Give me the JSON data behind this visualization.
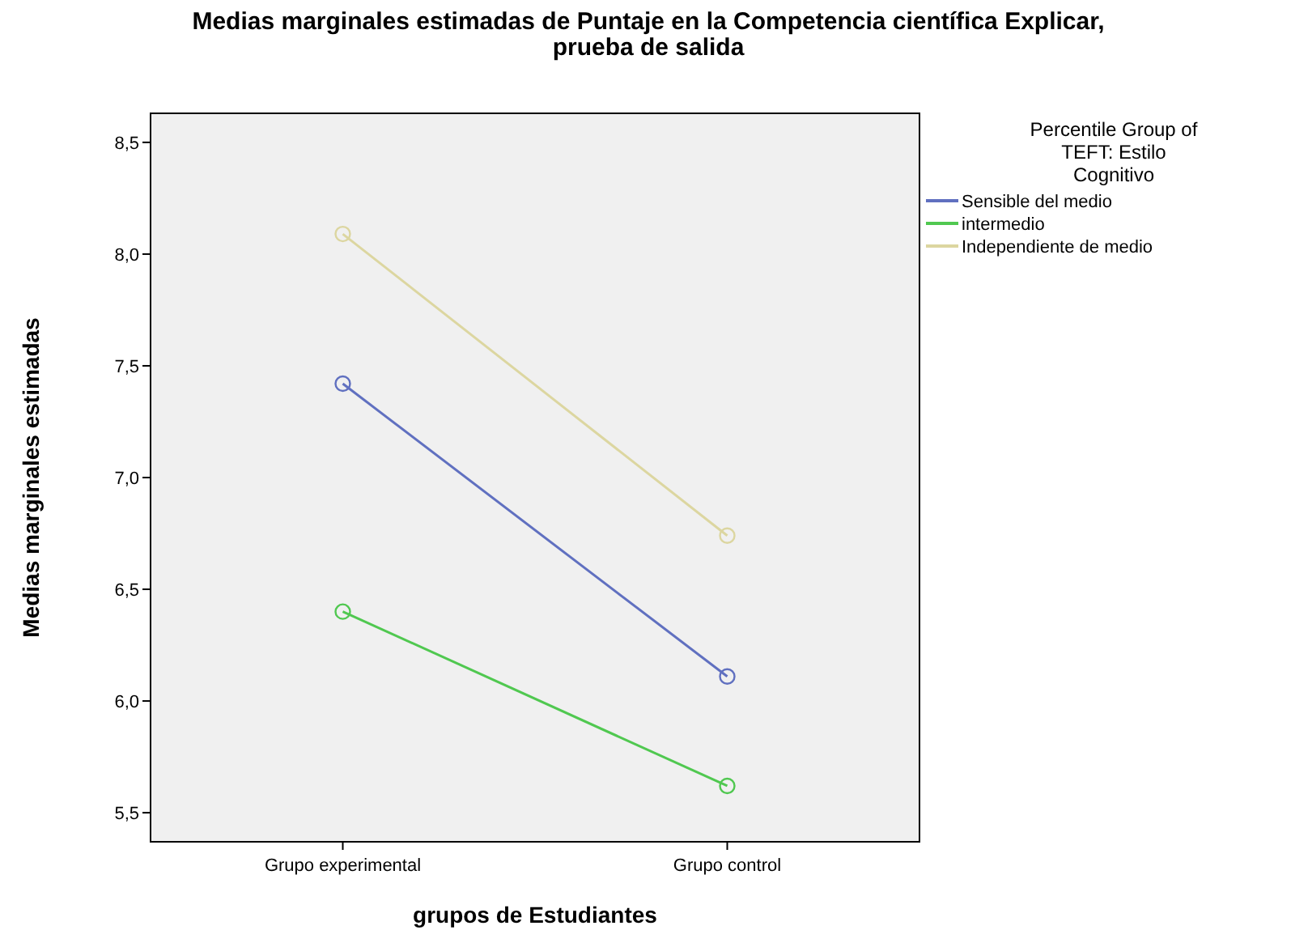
{
  "chart_data": {
    "type": "line",
    "title": "Medias marginales estimadas de Puntaje en la Competencia científica Explicar, prueba de salida",
    "xlabel": "grupos de Estudiantes",
    "ylabel": "Medias marginales estimadas",
    "legend_title": "Percentile Group of TEFT: Estilo Cognitivo",
    "categories": [
      "Grupo experimental",
      "Grupo control"
    ],
    "series": [
      {
        "name": "Sensible del medio",
        "color": "#6070c0",
        "values": [
          7.42,
          6.11
        ]
      },
      {
        "name": "intermedio",
        "color": "#50c850",
        "values": [
          6.4,
          5.62
        ]
      },
      {
        "name": "Independiente de medio",
        "color": "#dcd6a0",
        "values": [
          8.09,
          6.74
        ]
      }
    ],
    "ylim": [
      5.37,
      8.63
    ],
    "yticks": [
      {
        "value": 5.5,
        "label": "5,5"
      },
      {
        "value": 6,
        "label": "6,0"
      },
      {
        "value": 6.5,
        "label": "6,5"
      },
      {
        "value": 7,
        "label": "7,0"
      },
      {
        "value": 7.5,
        "label": "7,5"
      },
      {
        "value": 8,
        "label": "8,0"
      },
      {
        "value": 8.5,
        "label": "8,5"
      }
    ],
    "grid": false,
    "legend": "right",
    "marker": "circle",
    "line_style": "solid"
  }
}
